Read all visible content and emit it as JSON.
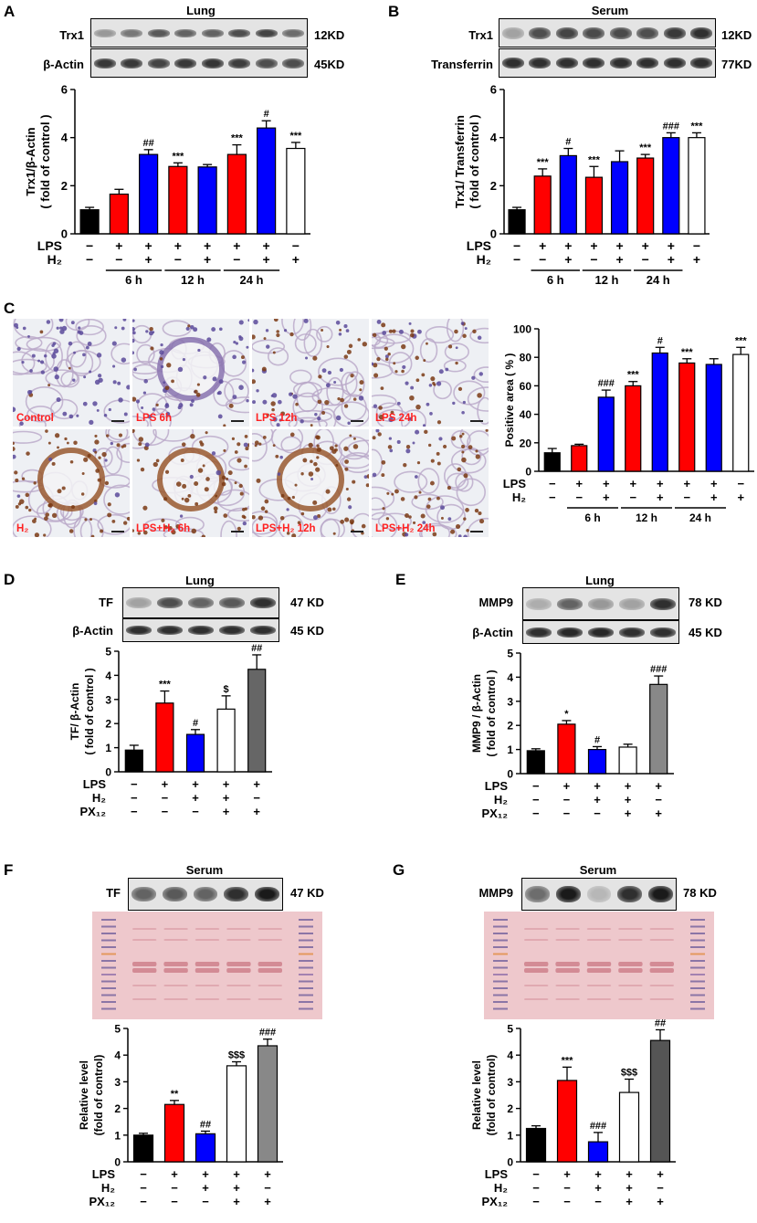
{
  "panels": {
    "A": {
      "letter": "A",
      "blot_title": "Lung",
      "rows": [
        {
          "label": "Trx1",
          "kd": "12KD"
        },
        {
          "label": "β-Actin",
          "kd": "45KD"
        }
      ]
    },
    "B": {
      "letter": "B",
      "blot_title": "Serum",
      "rows": [
        {
          "label": "Trx1",
          "kd": "12KD"
        },
        {
          "label": "Transferrin",
          "kd": "77KD"
        }
      ]
    },
    "C": {
      "letter": "C",
      "ihc_labels": [
        "Control",
        "LPS 6h",
        "LPS 12h",
        "LPS 24h",
        "H₂",
        "LPS+H₂ 6h",
        "LPS+H₂ 12h",
        "LPS+H₂ 24h"
      ]
    },
    "D": {
      "letter": "D",
      "blot_title": "Lung",
      "rows": [
        {
          "label": "TF",
          "kd": "47 KD"
        },
        {
          "label": "β-Actin",
          "kd": "45 KD"
        }
      ]
    },
    "E": {
      "letter": "E",
      "blot_title": "Lung",
      "rows": [
        {
          "label": "MMP9",
          "kd": "78 KD"
        },
        {
          "label": "β-Actin",
          "kd": "45 KD"
        }
      ]
    },
    "F": {
      "letter": "F",
      "blot_title": "Serum",
      "rows": [
        {
          "label": "TF",
          "kd": "47 KD"
        }
      ]
    },
    "G": {
      "letter": "G",
      "blot_title": "Serum",
      "rows": [
        {
          "label": "MMP9",
          "kd": "78 KD"
        }
      ]
    }
  },
  "chart_data": [
    {
      "id": "A",
      "type": "bar",
      "ylabel": [
        "Trx1/β-Actin",
        "( fold of control )"
      ],
      "ylim": [
        0,
        6
      ],
      "yticks": [
        0,
        2,
        4,
        6
      ],
      "values": [
        1.0,
        1.65,
        3.3,
        2.8,
        2.78,
        3.3,
        4.4,
        3.55
      ],
      "errors": [
        0.1,
        0.2,
        0.2,
        0.15,
        0.1,
        0.4,
        0.3,
        0.25
      ],
      "colors": [
        "#000000",
        "#ff0000",
        "#0000ff",
        "#ff0000",
        "#0000ff",
        "#ff0000",
        "#0000ff",
        "#ffffff"
      ],
      "annotations": [
        "",
        "",
        "##",
        "***",
        "",
        "***",
        "#",
        "***"
      ],
      "conditions": [
        {
          "name": "LPS",
          "signs": [
            "−",
            "+",
            "+",
            "+",
            "+",
            "+",
            "+",
            "−"
          ]
        },
        {
          "name": "H₂",
          "signs": [
            "−",
            "−",
            "+",
            "−",
            "+",
            "−",
            "+",
            "+"
          ]
        }
      ],
      "groups": [
        {
          "label": "6 h",
          "from": 1,
          "to": 2
        },
        {
          "label": "12 h",
          "from": 3,
          "to": 4
        },
        {
          "label": "24 h",
          "from": 5,
          "to": 6
        }
      ]
    },
    {
      "id": "B",
      "type": "bar",
      "ylabel": [
        "Trx1/ Transferrin",
        "( fold of control )"
      ],
      "ylim": [
        0,
        6
      ],
      "yticks": [
        0,
        2,
        4,
        6
      ],
      "values": [
        1.0,
        2.4,
        3.25,
        2.35,
        3.0,
        3.15,
        4.0,
        4.0
      ],
      "errors": [
        0.1,
        0.3,
        0.3,
        0.45,
        0.45,
        0.15,
        0.2,
        0.2
      ],
      "colors": [
        "#000000",
        "#ff0000",
        "#0000ff",
        "#ff0000",
        "#0000ff",
        "#ff0000",
        "#0000ff",
        "#ffffff"
      ],
      "annotations": [
        "",
        "***",
        "#",
        "***",
        "",
        "***",
        "###",
        "***"
      ],
      "conditions": [
        {
          "name": "LPS",
          "signs": [
            "−",
            "+",
            "+",
            "+",
            "+",
            "+",
            "+",
            "−"
          ]
        },
        {
          "name": "H₂",
          "signs": [
            "−",
            "−",
            "+",
            "−",
            "+",
            "−",
            "+",
            "+"
          ]
        }
      ],
      "groups": [
        {
          "label": "6 h",
          "from": 1,
          "to": 2
        },
        {
          "label": "12 h",
          "from": 3,
          "to": 4
        },
        {
          "label": "24 h",
          "from": 5,
          "to": 6
        }
      ]
    },
    {
      "id": "C",
      "type": "bar",
      "ylabel": [
        "Positive area ( % )"
      ],
      "ylim": [
        0,
        100
      ],
      "yticks": [
        0,
        20,
        40,
        60,
        80,
        100
      ],
      "values": [
        13,
        18,
        52,
        60,
        83,
        76,
        75,
        82
      ],
      "errors": [
        3,
        1,
        5,
        3,
        4,
        3,
        4,
        5
      ],
      "colors": [
        "#000000",
        "#ff0000",
        "#0000ff",
        "#ff0000",
        "#0000ff",
        "#ff0000",
        "#0000ff",
        "#ffffff"
      ],
      "annotations": [
        "",
        "",
        "###",
        "***",
        "#",
        "***",
        "",
        "***"
      ],
      "conditions": [
        {
          "name": "LPS",
          "signs": [
            "−",
            "+",
            "+",
            "+",
            "+",
            "+",
            "+",
            "−"
          ]
        },
        {
          "name": "H₂",
          "signs": [
            "−",
            "−",
            "+",
            "−",
            "+",
            "−",
            "+",
            "+"
          ]
        }
      ],
      "groups": [
        {
          "label": "6 h",
          "from": 1,
          "to": 2
        },
        {
          "label": "12 h",
          "from": 3,
          "to": 4
        },
        {
          "label": "24 h",
          "from": 5,
          "to": 6
        }
      ]
    },
    {
      "id": "D",
      "type": "bar",
      "ylabel": [
        "TF/ β-Actin",
        "( fold of control )"
      ],
      "ylim": [
        0,
        5
      ],
      "yticks": [
        0,
        1,
        2,
        3,
        4,
        5
      ],
      "values": [
        0.9,
        2.85,
        1.55,
        2.6,
        4.25
      ],
      "errors": [
        0.2,
        0.5,
        0.2,
        0.55,
        0.6
      ],
      "colors": [
        "#000000",
        "#ff0000",
        "#0000ff",
        "#ffffff",
        "#666666"
      ],
      "annotations": [
        "",
        "***",
        "#",
        "$",
        "##"
      ],
      "conditions": [
        {
          "name": "LPS",
          "signs": [
            "−",
            "+",
            "+",
            "+",
            "+"
          ]
        },
        {
          "name": "H₂",
          "signs": [
            "−",
            "−",
            "+",
            "+",
            "−"
          ]
        },
        {
          "name": "PX₁₂",
          "signs": [
            "−",
            "−",
            "−",
            "+",
            "+"
          ]
        }
      ],
      "groups": []
    },
    {
      "id": "E",
      "type": "bar",
      "ylabel": [
        "MMP9 / β-Actin",
        "( fold of control )"
      ],
      "ylim": [
        0,
        5
      ],
      "yticks": [
        0,
        1,
        2,
        3,
        4,
        5
      ],
      "values": [
        0.95,
        2.05,
        1.0,
        1.1,
        3.7
      ],
      "errors": [
        0.08,
        0.15,
        0.12,
        0.12,
        0.35
      ],
      "colors": [
        "#000000",
        "#ff0000",
        "#0000ff",
        "#ffffff",
        "#888888"
      ],
      "annotations": [
        "",
        "*",
        "#",
        "",
        "###"
      ],
      "conditions": [
        {
          "name": "LPS",
          "signs": [
            "−",
            "+",
            "+",
            "+",
            "+"
          ]
        },
        {
          "name": "H₂",
          "signs": [
            "−",
            "−",
            "+",
            "+",
            "−"
          ]
        },
        {
          "name": "PX₁₂",
          "signs": [
            "−",
            "−",
            "−",
            "+",
            "+"
          ]
        }
      ],
      "groups": []
    },
    {
      "id": "F",
      "type": "bar",
      "ylabel": [
        "Relative level",
        "(fold of control)"
      ],
      "ylim": [
        0,
        5
      ],
      "yticks": [
        0,
        1,
        2,
        3,
        4,
        5
      ],
      "values": [
        1.0,
        2.15,
        1.05,
        3.6,
        4.35
      ],
      "errors": [
        0.07,
        0.15,
        0.1,
        0.15,
        0.25
      ],
      "colors": [
        "#000000",
        "#ff0000",
        "#0000ff",
        "#ffffff",
        "#888888"
      ],
      "annotations": [
        "",
        "**",
        "##",
        "$$$",
        "###"
      ],
      "conditions": [
        {
          "name": "LPS",
          "signs": [
            "−",
            "+",
            "+",
            "+",
            "+"
          ]
        },
        {
          "name": "H₂",
          "signs": [
            "−",
            "−",
            "+",
            "+",
            "−"
          ]
        },
        {
          "name": "PX₁₂",
          "signs": [
            "−",
            "−",
            "−",
            "+",
            "+"
          ]
        }
      ],
      "groups": []
    },
    {
      "id": "G",
      "type": "bar",
      "ylabel": [
        "Relative level",
        "(fold of control)"
      ],
      "ylim": [
        0,
        5
      ],
      "yticks": [
        0,
        1,
        2,
        3,
        4,
        5
      ],
      "values": [
        1.25,
        3.05,
        0.75,
        2.6,
        4.55
      ],
      "errors": [
        0.1,
        0.5,
        0.35,
        0.5,
        0.4
      ],
      "colors": [
        "#000000",
        "#ff0000",
        "#0000ff",
        "#ffffff",
        "#555555"
      ],
      "annotations": [
        "",
        "***",
        "###",
        "$$$",
        "##"
      ],
      "conditions": [
        {
          "name": "LPS",
          "signs": [
            "−",
            "+",
            "+",
            "+",
            "+"
          ]
        },
        {
          "name": "H₂",
          "signs": [
            "−",
            "−",
            "+",
            "+",
            "−"
          ]
        },
        {
          "name": "PX₁₂",
          "signs": [
            "−",
            "−",
            "−",
            "+",
            "+"
          ]
        }
      ],
      "groups": []
    }
  ]
}
